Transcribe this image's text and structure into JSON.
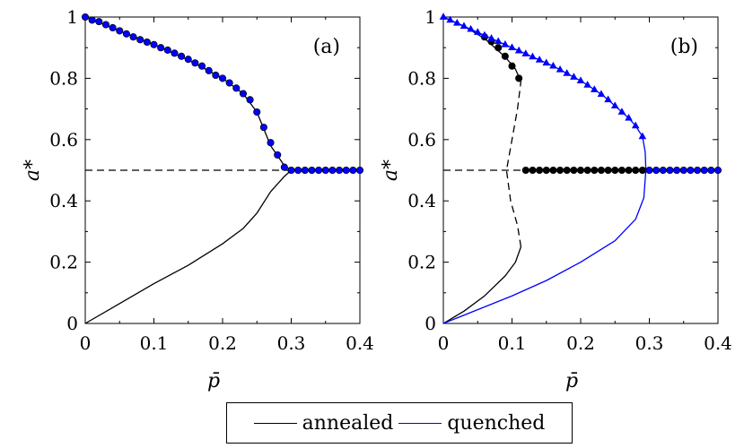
{
  "chart_data": [
    {
      "type": "line",
      "panel_label": "(a)",
      "xlabel": "p̄",
      "ylabel": "a*",
      "xlim": [
        0,
        0.4
      ],
      "ylim": [
        0,
        1
      ],
      "xticks": [
        "0",
        "0.1",
        "0.2",
        "0.3",
        "0.4"
      ],
      "yticks": [
        "0",
        "0.2",
        "0.4",
        "0.6",
        "0.8",
        "1"
      ],
      "reference_line": {
        "y": 0.5,
        "style": "dashed"
      },
      "series": [
        {
          "name": "annealed",
          "color": "#000000",
          "style": "solid",
          "x": [
            0,
            0.05,
            0.1,
            0.15,
            0.2,
            0.23,
            0.25,
            0.27,
            0.29,
            0.3
          ],
          "y": [
            0,
            0.065,
            0.13,
            0.19,
            0.26,
            0.31,
            0.36,
            0.43,
            0.48,
            0.5
          ]
        },
        {
          "name": "annealed",
          "color": "#000000",
          "style": "solid",
          "x": [
            0,
            0.05,
            0.1,
            0.15,
            0.2,
            0.23,
            0.25,
            0.27,
            0.29,
            0.3
          ],
          "y": [
            1,
            0.955,
            0.91,
            0.86,
            0.8,
            0.75,
            0.69,
            0.58,
            0.515,
            0.5
          ]
        },
        {
          "name": "annealed",
          "color": "#000000",
          "style": "solid",
          "x": [
            0.3,
            0.4
          ],
          "y": [
            0.5,
            0.5
          ]
        },
        {
          "name": "quenched",
          "color": "#0000ff",
          "style": "markers",
          "marker": "circle",
          "x": [
            0,
            0.01,
            0.02,
            0.03,
            0.04,
            0.05,
            0.06,
            0.07,
            0.08,
            0.09,
            0.1,
            0.11,
            0.12,
            0.13,
            0.14,
            0.15,
            0.16,
            0.17,
            0.18,
            0.19,
            0.2,
            0.21,
            0.22,
            0.23,
            0.24,
            0.25,
            0.26,
            0.27,
            0.28,
            0.29,
            0.3,
            0.31,
            0.32,
            0.33,
            0.34,
            0.35,
            0.36,
            0.37,
            0.38,
            0.39,
            0.4
          ],
          "y": [
            1,
            0.99,
            0.985,
            0.975,
            0.965,
            0.955,
            0.945,
            0.935,
            0.926,
            0.918,
            0.91,
            0.9,
            0.892,
            0.882,
            0.872,
            0.862,
            0.85,
            0.84,
            0.825,
            0.81,
            0.8,
            0.785,
            0.768,
            0.75,
            0.73,
            0.69,
            0.64,
            0.59,
            0.55,
            0.51,
            0.5,
            0.5,
            0.5,
            0.5,
            0.5,
            0.5,
            0.5,
            0.5,
            0.5,
            0.5,
            0.5
          ]
        }
      ]
    },
    {
      "type": "line",
      "panel_label": "(b)",
      "xlabel": "p̄",
      "ylabel": "a*",
      "xlim": [
        0,
        0.4
      ],
      "ylim": [
        0,
        1
      ],
      "xticks": [
        "0",
        "0.1",
        "0.2",
        "0.3",
        "0.4"
      ],
      "yticks": [
        "0",
        "0.2",
        "0.4",
        "0.6",
        "0.8",
        "1"
      ],
      "reference_line": {
        "y": 0.5,
        "style": "dashed"
      },
      "series": [
        {
          "name": "annealed",
          "color": "#000000",
          "style": "solid",
          "x": [
            0,
            0.03,
            0.06,
            0.09,
            0.105,
            0.113
          ],
          "y": [
            0,
            0.04,
            0.09,
            0.155,
            0.2,
            0.25
          ]
        },
        {
          "name": "annealed",
          "color": "#000000",
          "style": "dashed",
          "x": [
            0.113,
            0.108,
            0.098,
            0.092,
            0.1,
            0.108,
            0.113
          ],
          "y": [
            0.25,
            0.32,
            0.4,
            0.5,
            0.6,
            0.7,
            0.79
          ]
        },
        {
          "name": "annealed",
          "color": "#000000",
          "style": "solid",
          "x": [
            0,
            0.03,
            0.06,
            0.09,
            0.105,
            0.113
          ],
          "y": [
            1,
            0.97,
            0.93,
            0.87,
            0.83,
            0.79
          ]
        },
        {
          "name": "annealed",
          "color": "#000000",
          "style": "markers",
          "marker": "circle",
          "x": [
            0.06,
            0.07,
            0.08,
            0.09,
            0.1,
            0.11
          ],
          "y": [
            0.935,
            0.92,
            0.9,
            0.872,
            0.84,
            0.8
          ]
        },
        {
          "name": "annealed",
          "color": "#000000",
          "style": "markers",
          "marker": "circle",
          "x": [
            0.12,
            0.13,
            0.14,
            0.15,
            0.16,
            0.17,
            0.18,
            0.19,
            0.2,
            0.21,
            0.22,
            0.23,
            0.24,
            0.25,
            0.26,
            0.27,
            0.28,
            0.29
          ],
          "y": [
            0.5,
            0.5,
            0.5,
            0.5,
            0.5,
            0.5,
            0.5,
            0.5,
            0.5,
            0.5,
            0.5,
            0.5,
            0.5,
            0.5,
            0.5,
            0.5,
            0.5,
            0.5
          ]
        },
        {
          "name": "quenched",
          "color": "#0000ff",
          "style": "solid",
          "x": [
            0,
            0.05,
            0.1,
            0.15,
            0.2,
            0.25,
            0.28,
            0.292,
            0.295
          ],
          "y": [
            0,
            0.045,
            0.09,
            0.14,
            0.2,
            0.27,
            0.34,
            0.41,
            0.5
          ]
        },
        {
          "name": "quenched",
          "color": "#0000ff",
          "style": "solid",
          "x": [
            0.295,
            0.294,
            0.29
          ],
          "y": [
            0.5,
            0.56,
            0.61
          ]
        },
        {
          "name": "quenched",
          "color": "#0000ff",
          "style": "line+markers",
          "marker": "triangle",
          "x": [
            0,
            0.01,
            0.02,
            0.03,
            0.04,
            0.05,
            0.06,
            0.07,
            0.08,
            0.09,
            0.1,
            0.11,
            0.12,
            0.13,
            0.14,
            0.15,
            0.16,
            0.17,
            0.18,
            0.19,
            0.2,
            0.21,
            0.22,
            0.23,
            0.24,
            0.25,
            0.26,
            0.27,
            0.28,
            0.29
          ],
          "y": [
            1,
            0.99,
            0.98,
            0.97,
            0.96,
            0.95,
            0.94,
            0.93,
            0.92,
            0.91,
            0.9,
            0.89,
            0.88,
            0.87,
            0.86,
            0.85,
            0.84,
            0.828,
            0.816,
            0.804,
            0.792,
            0.778,
            0.763,
            0.748,
            0.73,
            0.71,
            0.69,
            0.67,
            0.645,
            0.61
          ]
        },
        {
          "name": "quenched",
          "color": "#0000ff",
          "style": "markers",
          "marker": "circle",
          "x": [
            0.3,
            0.31,
            0.32,
            0.33,
            0.34,
            0.35,
            0.36,
            0.37,
            0.38,
            0.39,
            0.4
          ],
          "y": [
            0.5,
            0.5,
            0.5,
            0.5,
            0.5,
            0.5,
            0.5,
            0.5,
            0.5,
            0.5,
            0.5
          ]
        }
      ]
    }
  ],
  "legend": {
    "entries": [
      {
        "label": "annealed",
        "color": "#000000"
      },
      {
        "label": "quenched",
        "color": "#0000ff"
      }
    ]
  }
}
